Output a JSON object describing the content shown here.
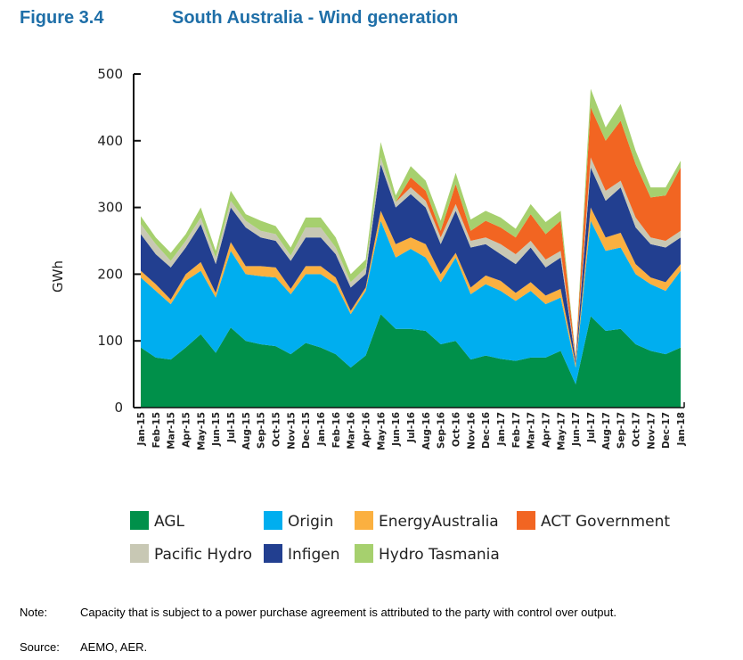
{
  "figure_label": "Figure 3.4",
  "title": "South Australia - Wind generation",
  "note_label": "Note:",
  "note_text": "Capacity that is subject to a power purchase agreement is attributed to the party with control over output.",
  "source_label": "Source:",
  "source_text": "AEMO, AER.",
  "chart_data": {
    "type": "area",
    "stacked": true,
    "title": "South Australia - Wind generation",
    "xlabel": "",
    "ylabel": "GWh",
    "ylim": [
      0,
      500
    ],
    "yticks": [
      "0",
      "100",
      "200",
      "300",
      "400",
      "500"
    ],
    "grid": false,
    "legend_position": "bottom",
    "categories": [
      "Jan-15",
      "Feb-15",
      "Mar-15",
      "Apr-15",
      "May-15",
      "Jun-15",
      "Jul-15",
      "Aug-15",
      "Sep-15",
      "Oct-15",
      "Nov-15",
      "Dec-15",
      "Jan-16",
      "Feb-16",
      "Mar-16",
      "Apr-16",
      "May-16",
      "Jun-16",
      "Jul-16",
      "Aug-16",
      "Sep-16",
      "Oct-16",
      "Nov-16",
      "Dec-16",
      "Jan-17",
      "Feb-17",
      "Mar-17",
      "Apr-17",
      "May-17",
      "Jun-17",
      "Jul-17",
      "Aug-17",
      "Sep-17",
      "Oct-17",
      "Nov-17",
      "Dec-17",
      "Jan-18"
    ],
    "series": [
      {
        "name": "AGL",
        "color": "#00904a",
        "values": [
          90,
          75,
          72,
          90,
          110,
          82,
          120,
          100,
          95,
          92,
          80,
          97,
          90,
          80,
          60,
          78,
          140,
          118,
          118,
          115,
          95,
          100,
          72,
          78,
          73,
          70,
          75,
          75,
          85,
          35,
          137,
          115,
          118,
          95,
          85,
          80,
          90
        ]
      },
      {
        "name": "Origin",
        "color": "#00aeef",
        "values": [
          105,
          100,
          83,
          100,
          95,
          83,
          115,
          100,
          102,
          103,
          90,
          103,
          110,
          105,
          80,
          97,
          140,
          107,
          120,
          110,
          93,
          125,
          98,
          107,
          102,
          90,
          100,
          80,
          80,
          25,
          143,
          120,
          122,
          105,
          100,
          95,
          115
        ]
      },
      {
        "name": "EnergyAustralia",
        "color": "#fbb040",
        "values": [
          10,
          10,
          7,
          10,
          13,
          7,
          13,
          12,
          15,
          15,
          8,
          12,
          12,
          10,
          5,
          5,
          15,
          20,
          17,
          20,
          12,
          7,
          10,
          13,
          15,
          12,
          13,
          13,
          13,
          5,
          20,
          20,
          22,
          15,
          10,
          13,
          10
        ]
      },
      {
        "name": "Infigen",
        "color": "#223f90",
        "values": [
          55,
          45,
          48,
          40,
          57,
          43,
          52,
          58,
          43,
          40,
          42,
          43,
          43,
          35,
          35,
          20,
          70,
          55,
          65,
          55,
          45,
          63,
          60,
          47,
          40,
          43,
          52,
          42,
          47,
          5,
          60,
          55,
          68,
          55,
          50,
          52,
          40
        ]
      },
      {
        "name": "Pacific Hydro",
        "color": "#c8c8b4",
        "values": [
          15,
          15,
          10,
          10,
          10,
          10,
          10,
          10,
          10,
          10,
          8,
          15,
          15,
          10,
          8,
          10,
          10,
          8,
          10,
          10,
          10,
          10,
          10,
          10,
          15,
          15,
          10,
          12,
          10,
          2,
          15,
          15,
          10,
          15,
          10,
          10,
          10
        ]
      },
      {
        "name": "ACT Government",
        "color": "#f26522",
        "values": [
          0,
          0,
          0,
          0,
          0,
          0,
          0,
          0,
          0,
          0,
          0,
          0,
          0,
          0,
          0,
          0,
          0,
          0,
          15,
          15,
          10,
          30,
          15,
          25,
          25,
          25,
          40,
          38,
          45,
          3,
          75,
          75,
          90,
          80,
          60,
          68,
          95
        ]
      },
      {
        "name": "Hydro Tasmania",
        "color": "#a6d06e",
        "values": [
          12,
          10,
          12,
          10,
          15,
          10,
          15,
          10,
          15,
          12,
          12,
          15,
          15,
          15,
          12,
          12,
          23,
          10,
          17,
          15,
          15,
          17,
          17,
          15,
          15,
          13,
          15,
          18,
          15,
          3,
          28,
          20,
          25,
          20,
          15,
          12,
          10
        ]
      }
    ],
    "legend_order": [
      "AGL",
      "Origin",
      "EnergyAustralia",
      "ACT Government",
      "Pacific Hydro",
      "Infigen",
      "Hydro Tasmania"
    ]
  }
}
